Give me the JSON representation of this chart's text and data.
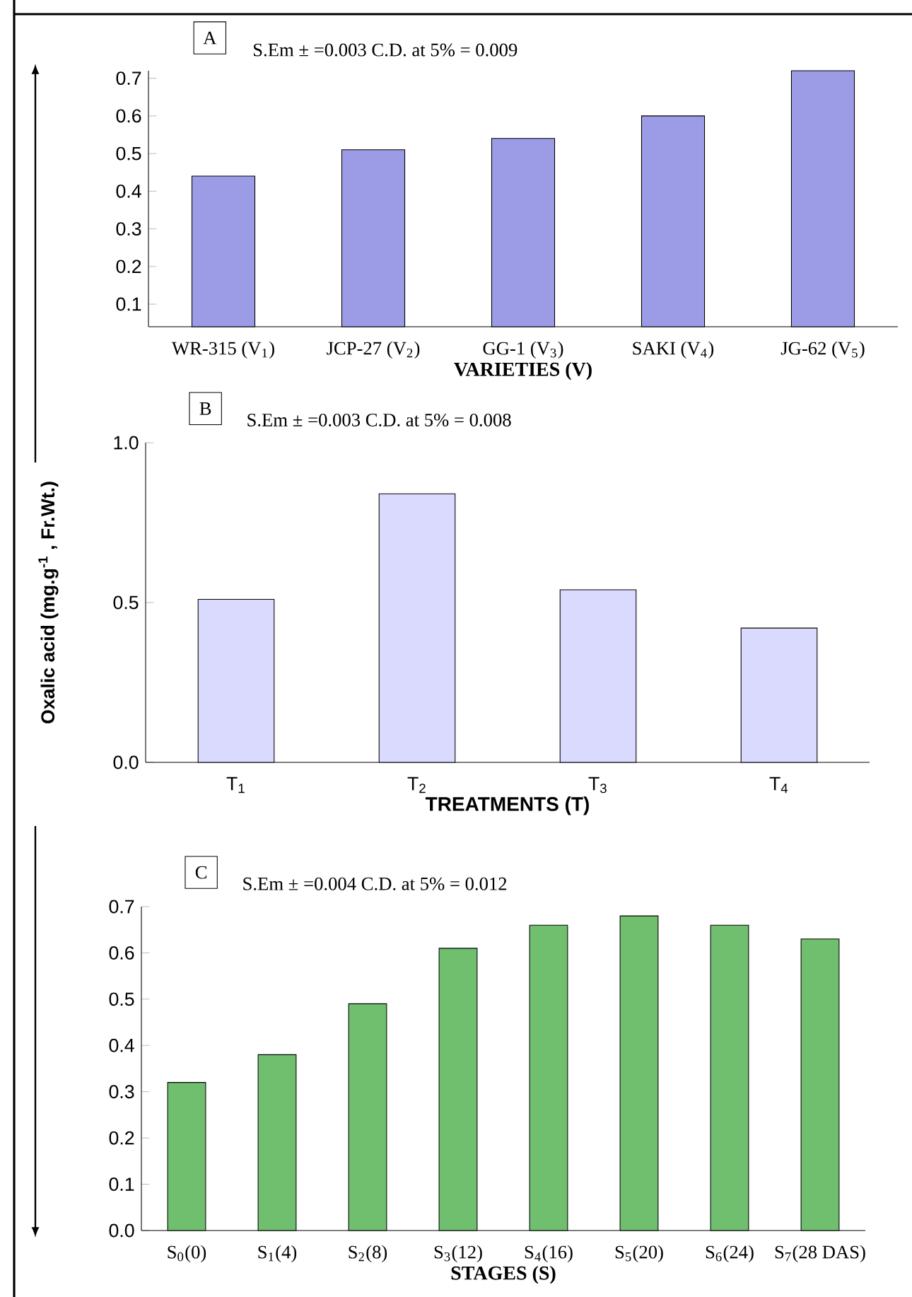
{
  "chart_data": [
    {
      "type": "bar",
      "title": "A",
      "annotations": [
        "S.Em ± =0.003   C.D. at 5% = 0.009"
      ],
      "xlabel": "VARIETIES (V)",
      "categories": [
        "WR-315 (V$_{1}$)",
        "JCP-27 (V$_{2}$)",
        "GG-1 (V$_{3}$)",
        "SAKI (V$_{4}$)",
        "JG-62 (V$_{5}$)"
      ],
      "values": [
        0.44,
        0.51,
        0.54,
        0.6,
        0.72
      ],
      "color": "#9c9ce6",
      "ylim": [
        0.04,
        0.72
      ],
      "yticks": [
        0.1,
        0.2,
        0.3,
        0.4,
        0.5,
        0.6,
        0.7
      ]
    },
    {
      "type": "bar",
      "title": "B",
      "annotations": [
        "S.Em ± =0.003   C.D. at 5% = 0.008"
      ],
      "xlabel": "TREATMENTS (T)",
      "ylabel": "Oxalic  acid (mg.g$^{-1}$ , Fr.Wt.)",
      "categories": [
        "T$_{1}$",
        "T$_{2}$",
        "T$_{3}$",
        "T$_{4}$"
      ],
      "values": [
        0.51,
        0.84,
        0.54,
        0.42
      ],
      "color": "#dadaff",
      "ylim": [
        0,
        1
      ],
      "yticks": [
        {
          "value": 0,
          "label": "0.0"
        },
        {
          "value": 0.5,
          "label": "0.5"
        },
        {
          "value": 1,
          "label": "1.0"
        }
      ]
    },
    {
      "type": "bar",
      "title": "C",
      "annotations": [
        "S.Em ± =0.004   C.D. at 5% = 0.012"
      ],
      "xlabel": "STAGES (S)",
      "categories": [
        "S$_{0}$(0)",
        "S$_{1}$(4)",
        "S$_{2}$(8)",
        "S$_{3}$(12)",
        "S$_{4}$(16)",
        "S$_{5}$(20)",
        "S$_{6}$(24)",
        "S$_{7}$(28 DAS)"
      ],
      "values": [
        0.32,
        0.38,
        0.49,
        0.61,
        0.66,
        0.68,
        0.66,
        0.63
      ],
      "color": "#6fbf6f",
      "ylim": [
        0,
        0.7
      ],
      "yticks": [
        {
          "value": 0,
          "label": "0.0"
        },
        0.1,
        0.2,
        0.3,
        0.4,
        0.5,
        0.6,
        0.7
      ]
    }
  ]
}
